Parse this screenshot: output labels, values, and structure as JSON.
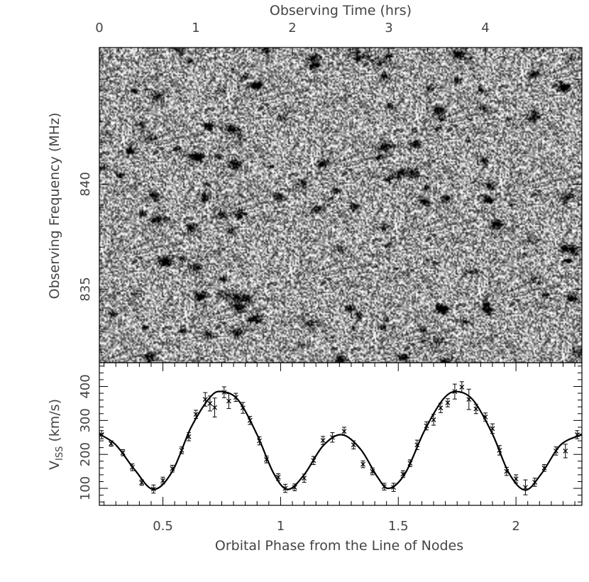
{
  "chart_data": [
    {
      "type": "heatmap",
      "name": "dynamic-spectrum",
      "xlabel": "Observing Time (hrs)",
      "ylabel": "Observing Frequency (MHz)",
      "x_range": [
        0,
        5.0
      ],
      "y_range": [
        831.5,
        846.5
      ],
      "x_ticks": [
        0,
        1,
        2,
        3,
        4
      ],
      "x_tick_labels": [
        "0",
        "1",
        "2",
        "3",
        "4"
      ],
      "y_ticks": [
        835,
        840
      ],
      "y_tick_labels": [
        "835",
        "840"
      ],
      "colormap": "grayscale"
    },
    {
      "type": "scatter",
      "name": "viss-vs-phase",
      "xlabel": "Orbital Phase from the Line of Nodes",
      "ylabel_main": "V",
      "ylabel_sub": "ISS",
      "ylabel_unit": "(km/s)",
      "xlim": [
        0.23,
        2.28
      ],
      "ylim": [
        50,
        470
      ],
      "x_ticks": [
        0.5,
        1,
        1.5,
        2
      ],
      "x_tick_labels": [
        "0.5",
        "1",
        "1.5",
        "2"
      ],
      "y_ticks": [
        100,
        200,
        300,
        400
      ],
      "y_tick_labels": [
        "100",
        "200",
        "300",
        "400"
      ],
      "series": [
        {
          "marker": "x-with-errorbars",
          "points": [
            {
              "x": 0.24,
              "y": 258,
              "err": 12
            },
            {
              "x": 0.28,
              "y": 232,
              "err": 8
            },
            {
              "x": 0.33,
              "y": 205,
              "err": 9
            },
            {
              "x": 0.37,
              "y": 162,
              "err": 10
            },
            {
              "x": 0.41,
              "y": 117,
              "err": 8
            },
            {
              "x": 0.46,
              "y": 98,
              "err": 12
            },
            {
              "x": 0.5,
              "y": 123,
              "err": 10
            },
            {
              "x": 0.54,
              "y": 158,
              "err": 10
            },
            {
              "x": 0.58,
              "y": 212,
              "err": 10
            },
            {
              "x": 0.61,
              "y": 252,
              "err": 12
            },
            {
              "x": 0.64,
              "y": 318,
              "err": 12
            },
            {
              "x": 0.68,
              "y": 362,
              "err": 20
            },
            {
              "x": 0.7,
              "y": 350,
              "err": 22
            },
            {
              "x": 0.72,
              "y": 338,
              "err": 28
            },
            {
              "x": 0.76,
              "y": 383,
              "err": 16
            },
            {
              "x": 0.78,
              "y": 357,
              "err": 22
            },
            {
              "x": 0.81,
              "y": 368,
              "err": 12
            },
            {
              "x": 0.84,
              "y": 337,
              "err": 16
            },
            {
              "x": 0.87,
              "y": 300,
              "err": 12
            },
            {
              "x": 0.91,
              "y": 240,
              "err": 12
            },
            {
              "x": 0.94,
              "y": 185,
              "err": 10
            },
            {
              "x": 0.99,
              "y": 133,
              "err": 10
            },
            {
              "x": 1.02,
              "y": 100,
              "err": 12
            },
            {
              "x": 1.06,
              "y": 103,
              "err": 10
            },
            {
              "x": 1.1,
              "y": 130,
              "err": 12
            },
            {
              "x": 1.14,
              "y": 182,
              "err": 12
            },
            {
              "x": 1.18,
              "y": 241,
              "err": 12
            },
            {
              "x": 1.22,
              "y": 250,
              "err": 14
            },
            {
              "x": 1.27,
              "y": 268,
              "err": 12
            },
            {
              "x": 1.31,
              "y": 228,
              "err": 12
            },
            {
              "x": 1.35,
              "y": 171,
              "err": 10
            },
            {
              "x": 1.39,
              "y": 150,
              "err": 10
            },
            {
              "x": 1.44,
              "y": 105,
              "err": 10
            },
            {
              "x": 1.48,
              "y": 103,
              "err": 12
            },
            {
              "x": 1.52,
              "y": 142,
              "err": 10
            },
            {
              "x": 1.55,
              "y": 174,
              "err": 10
            },
            {
              "x": 1.58,
              "y": 228,
              "err": 14
            },
            {
              "x": 1.62,
              "y": 284,
              "err": 12
            },
            {
              "x": 1.65,
              "y": 302,
              "err": 16
            },
            {
              "x": 1.68,
              "y": 337,
              "err": 14
            },
            {
              "x": 1.71,
              "y": 352,
              "err": 12
            },
            {
              "x": 1.74,
              "y": 385,
              "err": 22
            },
            {
              "x": 1.77,
              "y": 398,
              "err": 16
            },
            {
              "x": 1.8,
              "y": 362,
              "err": 30
            },
            {
              "x": 1.83,
              "y": 334,
              "err": 14
            },
            {
              "x": 1.87,
              "y": 310,
              "err": 12
            },
            {
              "x": 1.9,
              "y": 276,
              "err": 14
            },
            {
              "x": 1.93,
              "y": 212,
              "err": 14
            },
            {
              "x": 1.96,
              "y": 150,
              "err": 12
            },
            {
              "x": 2.0,
              "y": 128,
              "err": 12
            },
            {
              "x": 2.04,
              "y": 103,
              "err": 22
            },
            {
              "x": 2.08,
              "y": 118,
              "err": 12
            },
            {
              "x": 2.12,
              "y": 160,
              "err": 10
            },
            {
              "x": 2.17,
              "y": 210,
              "err": 12
            },
            {
              "x": 2.21,
              "y": 210,
              "err": 20
            },
            {
              "x": 2.26,
              "y": 258,
              "err": 12
            }
          ]
        },
        {
          "marker": "line",
          "model": "fit",
          "curve": [
            {
              "x": 0.23,
              "y": 260
            },
            {
              "x": 0.3,
              "y": 228
            },
            {
              "x": 0.38,
              "y": 155
            },
            {
              "x": 0.46,
              "y": 97
            },
            {
              "x": 0.54,
              "y": 150
            },
            {
              "x": 0.62,
              "y": 280
            },
            {
              "x": 0.7,
              "y": 368
            },
            {
              "x": 0.75,
              "y": 385
            },
            {
              "x": 0.82,
              "y": 360
            },
            {
              "x": 0.9,
              "y": 258
            },
            {
              "x": 0.97,
              "y": 145
            },
            {
              "x": 1.03,
              "y": 97
            },
            {
              "x": 1.1,
              "y": 140
            },
            {
              "x": 1.18,
              "y": 225
            },
            {
              "x": 1.26,
              "y": 258
            },
            {
              "x": 1.34,
              "y": 215
            },
            {
              "x": 1.41,
              "y": 135
            },
            {
              "x": 1.46,
              "y": 100
            },
            {
              "x": 1.53,
              "y": 145
            },
            {
              "x": 1.61,
              "y": 268
            },
            {
              "x": 1.69,
              "y": 362
            },
            {
              "x": 1.75,
              "y": 385
            },
            {
              "x": 1.82,
              "y": 358
            },
            {
              "x": 1.9,
              "y": 260
            },
            {
              "x": 1.97,
              "y": 145
            },
            {
              "x": 2.04,
              "y": 95
            },
            {
              "x": 2.11,
              "y": 145
            },
            {
              "x": 2.19,
              "y": 228
            },
            {
              "x": 2.28,
              "y": 258
            }
          ]
        }
      ]
    }
  ]
}
